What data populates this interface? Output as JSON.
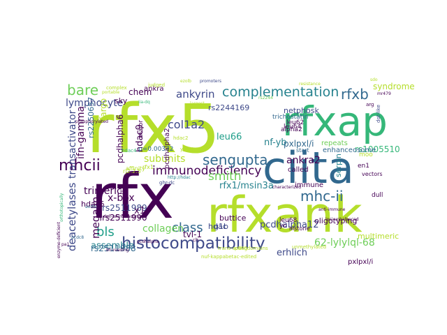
{
  "colors": {
    "background": "#ffffff",
    "palette": [
      "#440154",
      "#482878",
      "#3e4989",
      "#31688e",
      "#26828e",
      "#1f9e89",
      "#35b779",
      "#6ece58",
      "#b5de2b",
      "#fde725"
    ]
  },
  "words": [
    {
      "text": "rfx5",
      "color": "#b5de2b"
    },
    {
      "text": "rfxap",
      "color": "#35b779"
    },
    {
      "text": "ciita",
      "color": "#31688e"
    },
    {
      "text": "rfx",
      "color": "#440154"
    },
    {
      "text": "rfxank",
      "color": "#b5de2b"
    },
    {
      "text": "histocompatibility",
      "color": "#3e4989"
    },
    {
      "text": "complementation",
      "color": "#26828e"
    },
    {
      "text": "immunodeficiency",
      "color": "#440154"
    },
    {
      "text": "sengupta",
      "color": "#31688e"
    },
    {
      "text": "bare",
      "color": "#6ece58"
    },
    {
      "text": "mhcii",
      "color": "#440154"
    },
    {
      "text": "mhc-ii",
      "color": "#31688e"
    },
    {
      "text": "lymphocyte",
      "color": "#3e4989"
    },
    {
      "text": "rfxb",
      "color": "#31688e"
    },
    {
      "text": "col1a2",
      "color": "#3e4989"
    },
    {
      "text": "ankyrin",
      "color": "#3e4989"
    },
    {
      "text": "smith",
      "color": "#6ece58"
    },
    {
      "text": "class",
      "color": "#31688e"
    },
    {
      "text": "bls",
      "color": "#1f9e89"
    },
    {
      "text": "62-lylylql-68",
      "color": "#6ece58"
    },
    {
      "text": "deacetylases",
      "color": "#3e4989"
    },
    {
      "text": "transactivator",
      "color": "#3e4989"
    },
    {
      "text": "megalin",
      "color": "#440154"
    },
    {
      "text": "trimeric",
      "color": "#440154"
    },
    {
      "text": "x-box",
      "color": "#440154"
    },
    {
      "text": "leu66",
      "color": "#1f9e89"
    },
    {
      "text": "nf-yb",
      "color": "#26828e"
    },
    {
      "text": "ankra2",
      "color": "#440154"
    },
    {
      "text": "subunits",
      "color": "#b5de2b"
    },
    {
      "text": "assemble",
      "color": "#26828e"
    },
    {
      "text": "collagen",
      "color": "#6ece58"
    },
    {
      "text": "rfx1/msin3a",
      "color": "#26828e"
    },
    {
      "text": "pcdhalpha12",
      "color": "#3e4989"
    },
    {
      "text": "chem",
      "color": "#440154"
    },
    {
      "text": "hdac9",
      "color": "#440154"
    },
    {
      "text": "ifn-gamma",
      "color": "#440154"
    },
    {
      "text": "rs2244169",
      "color": "#3e4989"
    },
    {
      "text": "trichostatin",
      "color": "#31688e"
    },
    {
      "text": "rs2511989",
      "color": "#3e4989"
    },
    {
      "text": "rs2511990",
      "color": "#440154"
    },
    {
      "text": "rs2511988",
      "color": "#31688e"
    },
    {
      "text": "rs1005510",
      "color": "#35b779"
    },
    {
      "text": "erhlich",
      "color": "#3e4989"
    },
    {
      "text": "oligotyping",
      "color": "#440154"
    },
    {
      "text": "pxlpxl/i",
      "color": "#440154"
    },
    {
      "text": "enhanceosome",
      "color": "#31688e"
    },
    {
      "text": "buttice",
      "color": "#440154"
    },
    {
      "text": "hdac5",
      "color": "#440154"
    },
    {
      "text": "x1",
      "color": "#440154"
    },
    {
      "text": "hdac",
      "color": "#3e4989"
    },
    {
      "text": "netphosk",
      "color": "#3e4989"
    },
    {
      "text": "ankra",
      "color": "#440154"
    },
    {
      "text": "sky",
      "color": "#440154"
    },
    {
      "text": "major",
      "color": "#440154"
    },
    {
      "text": "serpin",
      "color": "#26828e"
    },
    {
      "text": "alpha2",
      "color": "#440154"
    },
    {
      "text": "leu64",
      "color": "#440154"
    },
    {
      "text": "leu62",
      "color": "#440154"
    },
    {
      "text": "leu68",
      "color": "#440154"
    },
    {
      "text": "repeats",
      "color": "#6ece58"
    },
    {
      "text": "syndrome",
      "color": "#b5de2b"
    },
    {
      "text": "pcdhalpha6",
      "color": "#440154"
    },
    {
      "text": "pcdhalpha2",
      "color": "#440154"
    },
    {
      "text": "tvl-1",
      "color": "#440154"
    },
    {
      "text": "g1b",
      "color": "#3e4989"
    },
    {
      "text": "called",
      "color": "#440154"
    },
    {
      "text": "immune",
      "color": "#440154"
    },
    {
      "text": "multimeric",
      "color": "#b5de2b"
    },
    {
      "text": "rs2250657",
      "color": "#31688e"
    },
    {
      "text": "fargo",
      "color": "#b5de2b"
    },
    {
      "text": "judged",
      "color": "#b5de2b"
    },
    {
      "text": "p=0.00372",
      "color": "#31688e"
    },
    {
      "text": "pxlpxl/i",
      "color": "#31688e"
    },
    {
      "text": "trans-acting",
      "color": "#b5de2b"
    },
    {
      "text": "nuf-kappabetac-edited",
      "color": "#b5de2b"
    },
    {
      "text": "unmethylated",
      "color": "#b5de2b"
    },
    {
      "text": "p400domains",
      "color": "#b5de2b"
    },
    {
      "text": "vectors",
      "color": "#440154"
    },
    {
      "text": "histone",
      "color": "#440154"
    },
    {
      "text": "characterized",
      "color": "#440154"
    },
    {
      "text": "affinity",
      "color": "#b5de2b"
    },
    {
      "text": "rfx1",
      "color": "#b5de2b"
    },
    {
      "text": "start",
      "color": "#31688e"
    },
    {
      "text": "complex",
      "color": "#b5de2b"
    },
    {
      "text": "portable",
      "color": "#b5de2b"
    },
    {
      "text": "iia-dq",
      "color": "#35b779"
    },
    {
      "text": "hdac2",
      "color": "#b5de2b"
    },
    {
      "text": "hdac4",
      "color": "#35b779"
    },
    {
      "text": "rj2.2.5",
      "color": "#b5de2b"
    },
    {
      "text": "en1",
      "color": "#440154"
    },
    {
      "text": "ghr-dc",
      "color": "#3e4989"
    },
    {
      "text": "yeast",
      "color": "#b5de2b"
    },
    {
      "text": "moo",
      "color": "#b5de2b"
    },
    {
      "text": "dull",
      "color": "#440154"
    },
    {
      "text": "yc",
      "color": "#440154"
    },
    {
      "text": "largest",
      "color": "#b5de2b"
    },
    {
      "text": "b2",
      "color": "#440154"
    },
    {
      "text": "enzyme-deficient",
      "color": "#440154"
    },
    {
      "text": "aortic",
      "color": "#31688e"
    },
    {
      "text": "anti-immune",
      "color": "#440154"
    },
    {
      "text": "loci-unbalanced",
      "color": "#440154"
    },
    {
      "text": "pcdhalpha",
      "color": "#440154"
    },
    {
      "text": "orthotopically",
      "color": "#35b779"
    },
    {
      "text": "rs2244",
      "color": "#6ece58"
    },
    {
      "text": "pcdc8",
      "color": "#31688e"
    },
    {
      "text": "ch",
      "color": "#440154"
    },
    {
      "text": "mr479",
      "color": "#440154"
    },
    {
      "text": "sdo",
      "color": "#b5de2b"
    },
    {
      "text": "arg",
      "color": "#440154"
    },
    {
      "text": "pa1",
      "color": "#440154"
    },
    {
      "text": "dot-like",
      "color": "#3e4989"
    },
    {
      "text": "promoters",
      "color": "#3e4989"
    },
    {
      "text": "ezolb",
      "color": "#b5de2b"
    },
    {
      "text": "resistance",
      "color": "#b5de2b"
    },
    {
      "text": "phosphorylated",
      "color": "#440154"
    },
    {
      "text": "bh-reading",
      "color": "#440154"
    },
    {
      "text": "dull-uninteracting",
      "color": "#440154"
    },
    {
      "text": "http://hdac",
      "color": "#26828e"
    }
  ]
}
